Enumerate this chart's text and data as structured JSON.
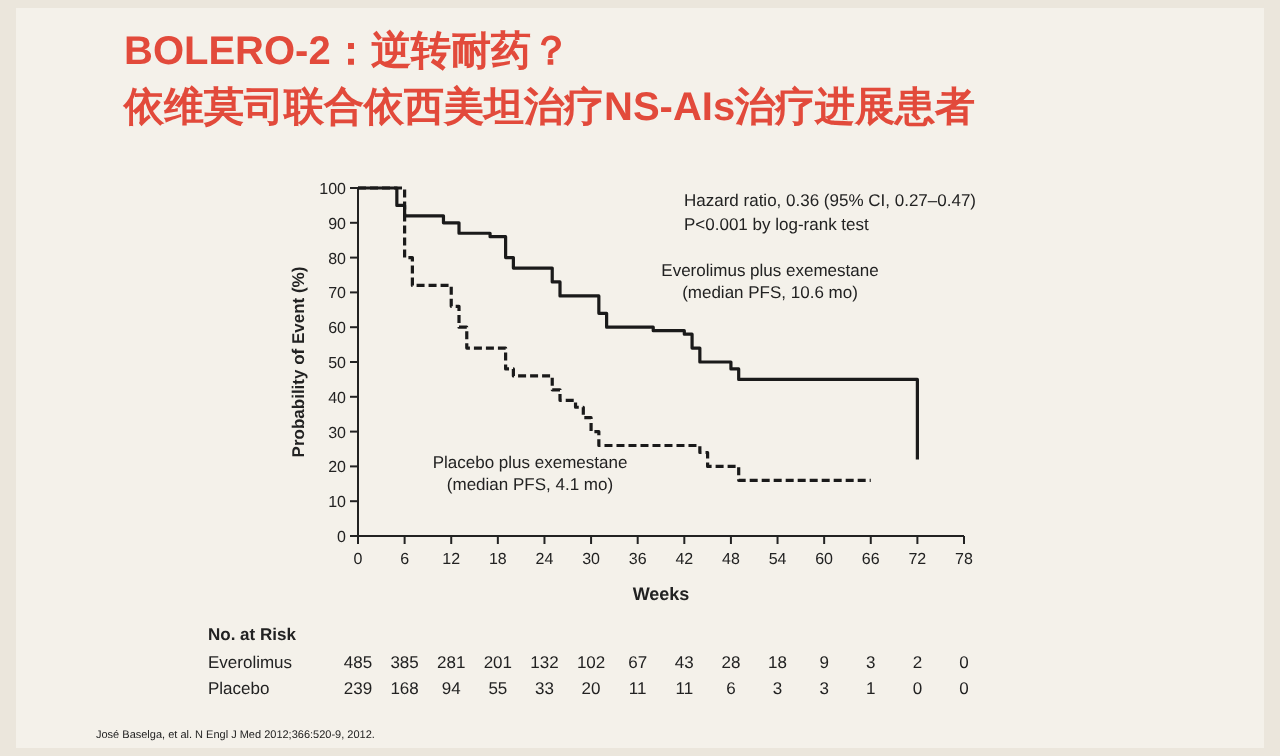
{
  "chart_data": {
    "type": "step",
    "title": "BOLERO-2：逆转耐药？",
    "subtitle": "依维莫司联合依西美坦治疗NS-AIs治疗进展患者",
    "xlabel": "Weeks",
    "ylabel": "Probability of Event (%)",
    "xlim": [
      0,
      78
    ],
    "xticks": [
      0,
      6,
      12,
      18,
      24,
      30,
      36,
      42,
      48,
      54,
      60,
      66,
      72,
      78
    ],
    "ylim": [
      0,
      100
    ],
    "yticks": [
      0,
      10,
      20,
      30,
      40,
      50,
      60,
      70,
      80,
      90,
      100
    ],
    "grid": false,
    "series": [
      {
        "name": "Everolimus plus exemestane (median PFS, 10.6 mo)",
        "color": "#1a1a1a",
        "line_style": "solid",
        "x": [
          0,
          4,
          5,
          6,
          10,
          11,
          13,
          17,
          19,
          20,
          24,
          25,
          26,
          30,
          31,
          32,
          36,
          38,
          42,
          43,
          44,
          47,
          48,
          49,
          72,
          72
        ],
        "values": [
          100,
          100,
          95,
          92,
          92,
          90,
          87,
          86,
          80,
          77,
          77,
          73,
          69,
          69,
          64,
          60,
          60,
          59,
          58,
          54,
          50,
          50,
          48,
          45,
          45,
          22
        ]
      },
      {
        "name": "Placebo plus exemestane (median PFS, 4.1 mo)",
        "color": "#1a1a1a",
        "line_style": "dashed",
        "x": [
          0,
          5,
          6,
          7,
          11,
          12,
          13,
          14,
          18,
          19,
          20,
          24,
          25,
          26,
          28,
          29,
          30,
          31,
          43,
          44,
          45,
          48,
          49,
          66
        ],
        "values": [
          100,
          100,
          80,
          72,
          72,
          66,
          60,
          54,
          54,
          48,
          46,
          46,
          42,
          39,
          37,
          34,
          30,
          26,
          26,
          24,
          20,
          20,
          16,
          16
        ]
      }
    ],
    "annotations": [
      "Hazard ratio, 0.36 (95% CI, 0.27–0.47)",
      "P<0.001 by log-rank test",
      "No. at Risk",
      "Everolimus",
      "485",
      "385",
      "281",
      "201",
      "132",
      "102",
      "67",
      "43",
      "28",
      "18",
      "9",
      "3",
      "2",
      "0",
      "Placebo",
      "239",
      "168",
      "94",
      "55",
      "33",
      "20",
      "11",
      "11",
      "6",
      "3",
      "3",
      "1",
      "0",
      "0",
      "José Baselga, et al. N Engl J Med 2012;366:520-9, 2012."
    ]
  }
}
